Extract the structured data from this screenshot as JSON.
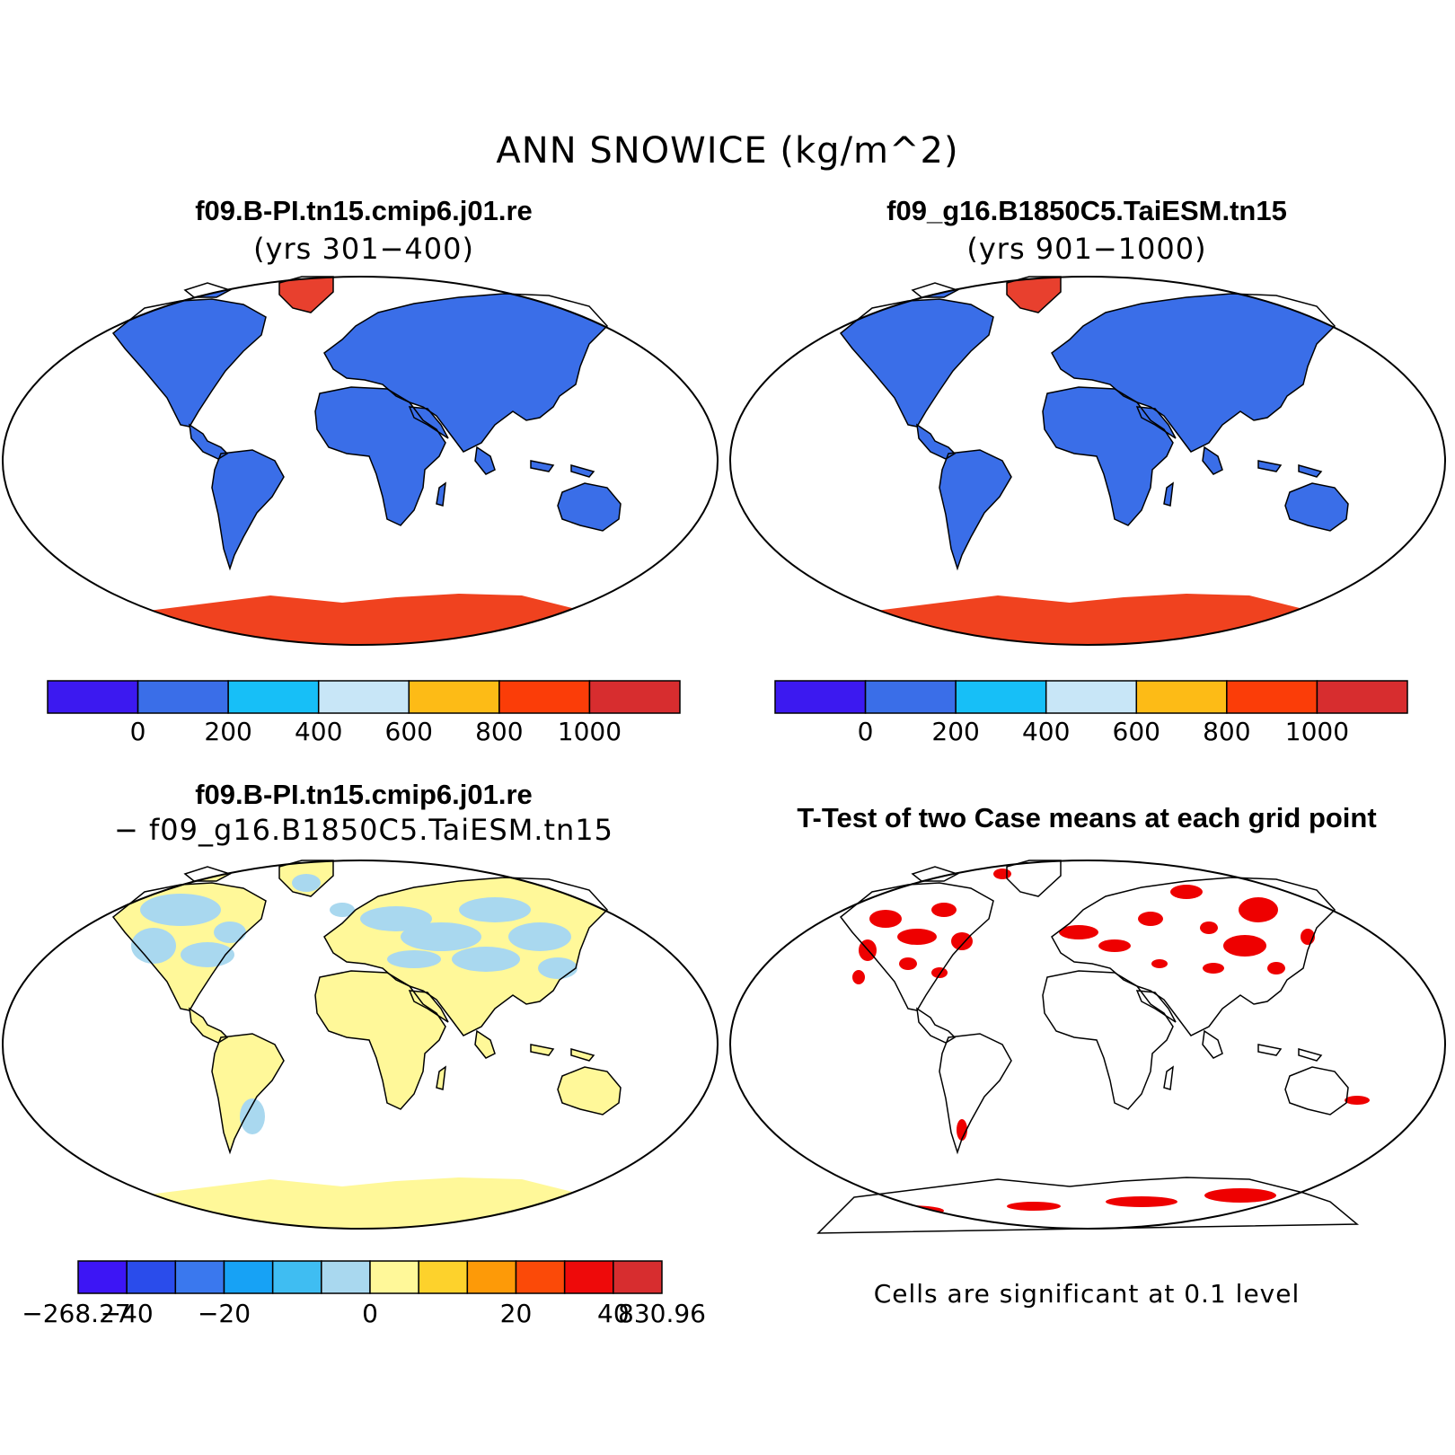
{
  "figure": {
    "title": "ANN SNOWICE (kg/m^2)"
  },
  "panels": [
    {
      "id": "case1",
      "title": "f09.B-PI.tn15.cmip6.j01.re",
      "subtitle": "(yrs 301−400)",
      "land_color": "#3a6ee8",
      "greenland_color": "#e8402e",
      "antarctica_color": "#f0421f"
    },
    {
      "id": "case2",
      "title": "f09_g16.B1850C5.TaiESM.tn15",
      "subtitle": "(yrs 901−1000)",
      "land_color": "#3a6ee8",
      "greenland_color": "#e8402e",
      "antarctica_color": "#f0421f"
    },
    {
      "id": "diff",
      "title": "f09.B-PI.tn15.cmip6.j01.re",
      "subtitle": "− f09_g16.B1850C5.TaiESM.tn15",
      "land_color": "#fff899",
      "northern_color": "#a9d8ef"
    },
    {
      "id": "ttest",
      "title": "T-Test of two Case means at each grid point",
      "note": "Cells are significant at 0.1 level",
      "sig_color": "#ee0000"
    }
  ],
  "colorbars": {
    "absolute": {
      "colors": [
        "#3c19f0",
        "#3a6ee8",
        "#17bff7",
        "#c8e6f7",
        "#fdbb16",
        "#fb3d08",
        "#d72d2f"
      ],
      "tick_labels": [
        "0",
        "200",
        "400",
        "600",
        "800",
        "1000"
      ]
    },
    "difference": {
      "colors": [
        "#3d15f5",
        "#2a4ceb",
        "#3a78ee",
        "#17a2f5",
        "#3fbdf2",
        "#a9d8ef",
        "#fff899",
        "#fdd22c",
        "#fd9a08",
        "#fb4a08",
        "#ee0a0a",
        "#d72d2f"
      ],
      "tick_labels": [
        "−268.27",
        "−40",
        "−20",
        "0",
        "20",
        "40",
        "830.96"
      ]
    }
  }
}
